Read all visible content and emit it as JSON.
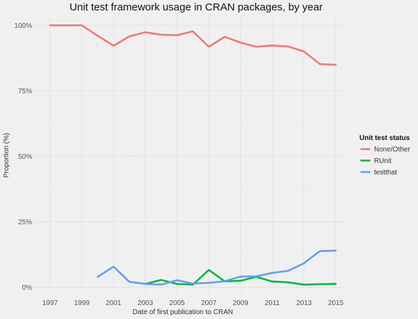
{
  "chart_data": {
    "type": "line",
    "title": "Unit test framework usage in CRAN packages, by year",
    "xlabel": "Date of first publication to CRAN",
    "ylabel": "Proportion (%)",
    "xlim": [
      1996.0,
      2015.7
    ],
    "ylim": [
      -0.02,
      1.03
    ],
    "x_ticks": [
      1997,
      1999,
      2001,
      2003,
      2005,
      2007,
      2009,
      2011,
      2013,
      2015
    ],
    "x_tick_labels": [
      "1997",
      "1999",
      "2001",
      "2003",
      "2005",
      "2007",
      "2009",
      "2011",
      "2013",
      "2015"
    ],
    "y_ticks": [
      0,
      0.25,
      0.5,
      0.75,
      1.0
    ],
    "y_tick_labels": [
      "0%",
      "25%",
      "50%",
      "75%",
      "100%"
    ],
    "grid": true,
    "legend": {
      "title": "Unit test status",
      "position": "right"
    },
    "series": [
      {
        "name": "None/Other",
        "color": "#f8766d",
        "x": [
          1997,
          1998,
          1999,
          2000,
          2001,
          2002,
          2003,
          2004,
          2005,
          2006,
          2007,
          2008,
          2009,
          2010,
          2011,
          2012,
          2013,
          2014,
          2015
        ],
        "values": [
          1.0,
          1.0,
          1.0,
          0.96,
          0.922,
          0.958,
          0.973,
          0.964,
          0.962,
          0.977,
          0.918,
          0.956,
          0.934,
          0.918,
          0.923,
          0.919,
          0.9,
          0.852,
          0.849
        ]
      },
      {
        "name": "RUnit",
        "color": "#00ba38",
        "x": [
          2003,
          2004,
          2005,
          2006,
          2007,
          2008,
          2009,
          2010,
          2011,
          2012,
          2013,
          2014,
          2015
        ],
        "values": [
          0.013,
          0.028,
          0.013,
          0.01,
          0.066,
          0.023,
          0.025,
          0.04,
          0.022,
          0.019,
          0.01,
          0.012,
          0.013
        ]
      },
      {
        "name": "testthat",
        "color": "#619cff",
        "x": [
          2000,
          2001,
          2002,
          2003,
          2004,
          2005,
          2006,
          2007,
          2008,
          2009,
          2010,
          2011,
          2012,
          2013,
          2014,
          2015
        ],
        "values": [
          0.04,
          0.079,
          0.021,
          0.013,
          0.01,
          0.027,
          0.014,
          0.017,
          0.023,
          0.041,
          0.042,
          0.055,
          0.063,
          0.092,
          0.138,
          0.14
        ]
      }
    ]
  }
}
